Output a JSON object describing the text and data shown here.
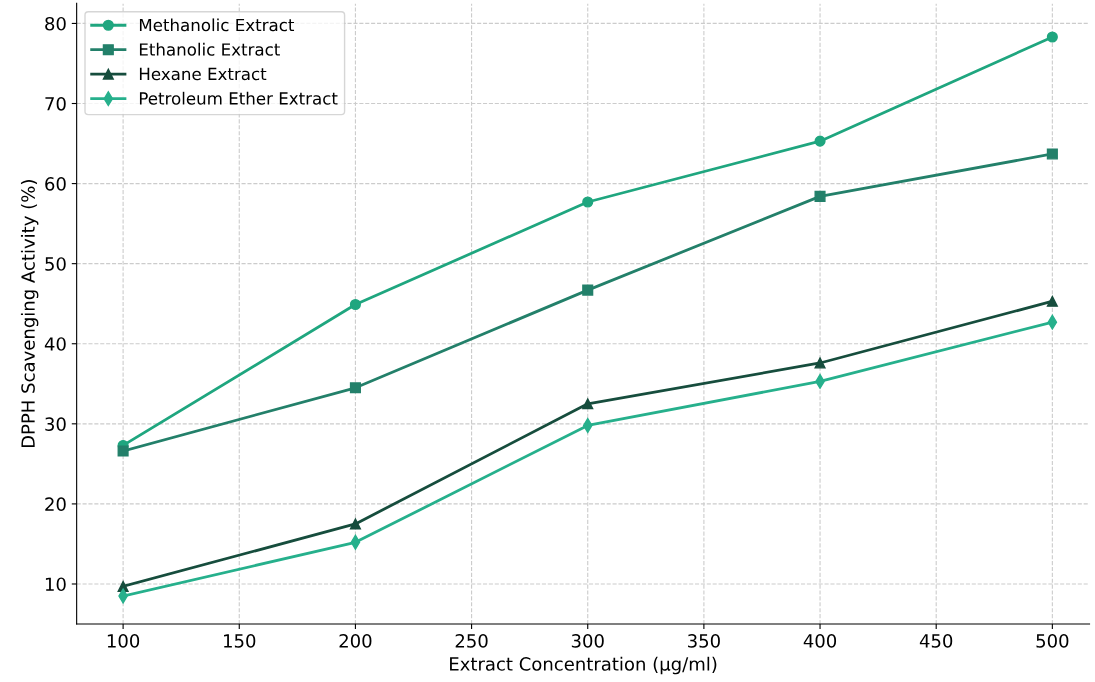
{
  "chart_data": {
    "type": "line",
    "xlabel": "Extract Concentration (µg/ml)",
    "ylabel": "DPPH Scavenging Activity (%)",
    "x": [
      100,
      200,
      300,
      400,
      500
    ],
    "series": [
      {
        "name": "Methanolic Extract",
        "color": "#1fa67f",
        "marker": "circle",
        "values": [
          27.3,
          44.9,
          57.7,
          65.3,
          78.3
        ]
      },
      {
        "name": "Ethanolic Extract",
        "color": "#23806a",
        "marker": "square",
        "values": [
          26.6,
          34.5,
          46.7,
          58.4,
          63.7
        ]
      },
      {
        "name": "Hexane Extract",
        "color": "#164d3d",
        "marker": "triangle",
        "values": [
          9.7,
          17.5,
          32.5,
          37.6,
          45.3
        ]
      },
      {
        "name": "Petroleum Ether Extract",
        "color": "#26b08c",
        "marker": "diamond",
        "values": [
          8.5,
          15.2,
          29.8,
          35.3,
          42.7
        ]
      }
    ],
    "xlim": [
      80,
      516
    ],
    "ylim": [
      5,
      82.5
    ],
    "xticks": [
      100,
      150,
      200,
      250,
      300,
      350,
      400,
      450,
      500
    ],
    "yticks": [
      10,
      20,
      30,
      40,
      50,
      60,
      70,
      80
    ],
    "grid": true,
    "legend": "top left",
    "line_style": "solid"
  }
}
